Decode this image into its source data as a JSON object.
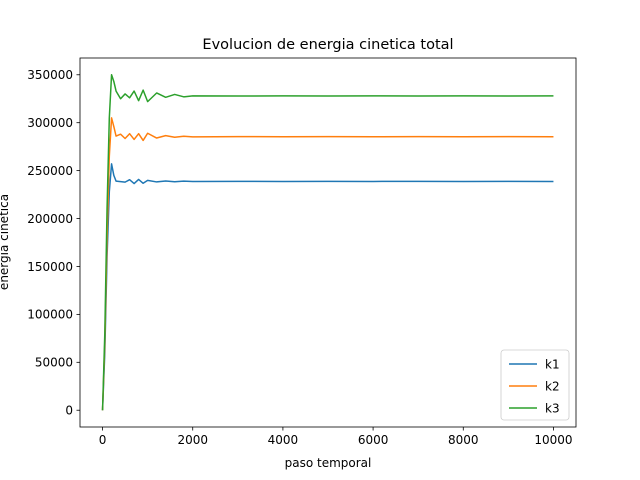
{
  "chart_data": {
    "type": "line",
    "title": "Evolucion de energia cinetica total",
    "xlabel": "paso temporal",
    "ylabel": "energia cinetica",
    "xlim": [
      -500,
      10500
    ],
    "ylim": [
      -17500,
      367500
    ],
    "xticks": [
      0,
      2000,
      4000,
      6000,
      8000,
      10000
    ],
    "yticks": [
      0,
      50000,
      100000,
      150000,
      200000,
      250000,
      300000,
      350000
    ],
    "grid": false,
    "legend_position": "lower right",
    "series": [
      {
        "name": "k1",
        "color": "#1f77b4",
        "x": [
          0,
          50,
          100,
          150,
          200,
          250,
          300,
          400,
          500,
          600,
          700,
          800,
          900,
          1000,
          1200,
          1400,
          1600,
          1800,
          2000,
          3000,
          4000,
          5000,
          6000,
          7000,
          8000,
          9000,
          10000
        ],
        "y": [
          0,
          60000,
          160000,
          228000,
          257000,
          245000,
          239000,
          238500,
          238000,
          240500,
          236500,
          240800,
          236800,
          239800,
          238200,
          239200,
          238400,
          239000,
          238700,
          238800,
          238700,
          238800,
          238700,
          238800,
          238700,
          238800,
          238700
        ]
      },
      {
        "name": "k2",
        "color": "#ff7f0e",
        "x": [
          0,
          50,
          100,
          150,
          200,
          250,
          300,
          400,
          500,
          600,
          700,
          800,
          900,
          1000,
          1200,
          1400,
          1600,
          1800,
          2000,
          3000,
          4000,
          5000,
          6000,
          7000,
          8000,
          9000,
          10000
        ],
        "y": [
          0,
          70000,
          180000,
          265000,
          305000,
          296000,
          286000,
          288000,
          283500,
          288500,
          282500,
          288500,
          281500,
          289000,
          284000,
          286500,
          284800,
          285800,
          285200,
          285500,
          285300,
          285500,
          285300,
          285500,
          285300,
          285500,
          285300
        ]
      },
      {
        "name": "k3",
        "color": "#2ca02c",
        "x": [
          0,
          50,
          100,
          150,
          200,
          250,
          300,
          400,
          500,
          600,
          700,
          800,
          900,
          1000,
          1200,
          1400,
          1600,
          1800,
          2000,
          3000,
          4000,
          5000,
          6000,
          7000,
          8000,
          9000,
          10000
        ],
        "y": [
          0,
          80000,
          210000,
          305000,
          350000,
          343000,
          333000,
          325000,
          330000,
          326000,
          333000,
          323000,
          334000,
          322000,
          331000,
          326500,
          329500,
          327000,
          328000,
          327800,
          328000,
          327800,
          328000,
          327800,
          328000,
          327800,
          328000
        ]
      }
    ]
  }
}
